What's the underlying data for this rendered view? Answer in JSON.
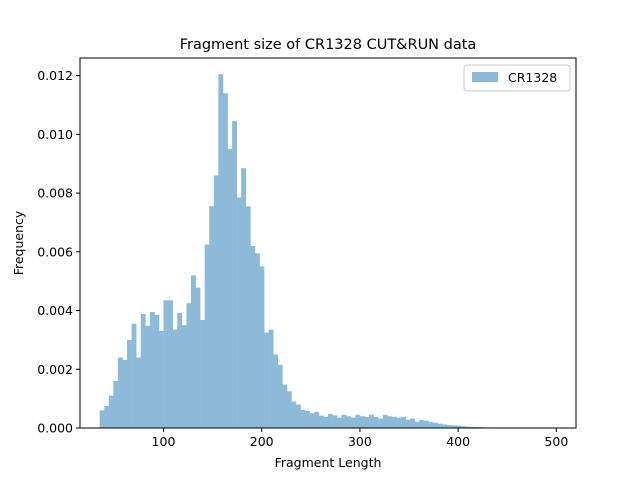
{
  "chart_data": {
    "type": "bar",
    "title": "Fragment size of CR1328 CUT&RUN data",
    "xlabel": "Fragment Length",
    "ylabel": "Frequency",
    "xlim": [
      15,
      520
    ],
    "ylim": [
      0,
      0.0126
    ],
    "x_ticks": [
      100,
      200,
      300,
      400,
      500
    ],
    "x_tick_labels": [
      "100",
      "200",
      "300",
      "400",
      "500"
    ],
    "y_ticks": [
      0,
      0.002,
      0.004,
      0.006,
      0.008,
      0.01,
      0.012
    ],
    "y_tick_labels": [
      "0.000",
      "0.002",
      "0.004",
      "0.006",
      "0.008",
      "0.010",
      "0.012"
    ],
    "grid": false,
    "legend_position": "top-right",
    "bin_start": 35,
    "bin_width": 4.65,
    "series": [
      {
        "name": "CR1328",
        "color": "#8ebad9",
        "values": [
          0.0006,
          0.00075,
          0.0011,
          0.0016,
          0.0024,
          0.00232,
          0.003,
          0.00355,
          0.0024,
          0.00388,
          0.00348,
          0.00395,
          0.00385,
          0.0033,
          0.00435,
          0.00435,
          0.00335,
          0.00392,
          0.0035,
          0.00425,
          0.0052,
          0.00478,
          0.00368,
          0.00625,
          0.00755,
          0.0086,
          0.01205,
          0.0114,
          0.0095,
          0.01045,
          0.00785,
          0.00885,
          0.00755,
          0.0062,
          0.00595,
          0.0055,
          0.00325,
          0.00335,
          0.0025,
          0.00215,
          0.00148,
          0.00125,
          0.0009,
          0.0008,
          0.00062,
          0.00058,
          0.0005,
          0.00055,
          0.00042,
          0.00038,
          0.00048,
          0.00043,
          0.00035,
          0.00045,
          0.0004,
          0.00035,
          0.00045,
          0.0004,
          0.00038,
          0.00045,
          0.00038,
          0.00032,
          0.00045,
          0.0004,
          0.00038,
          0.00035,
          0.00038,
          0.00028,
          0.00032,
          0.00022,
          0.00028,
          0.00025,
          0.0002,
          0.00018,
          0.00015,
          0.00012,
          0.0001,
          9e-05,
          8e-05,
          6e-05,
          5e-05,
          4e-05,
          4e-05,
          3e-05,
          2e-05,
          2e-05,
          2e-05,
          1e-05,
          1e-05,
          1e-05,
          1e-05,
          1e-05,
          1e-05,
          1e-05,
          1e-05,
          1e-05,
          1e-05,
          1e-05,
          1e-05,
          1e-05
        ]
      }
    ]
  }
}
